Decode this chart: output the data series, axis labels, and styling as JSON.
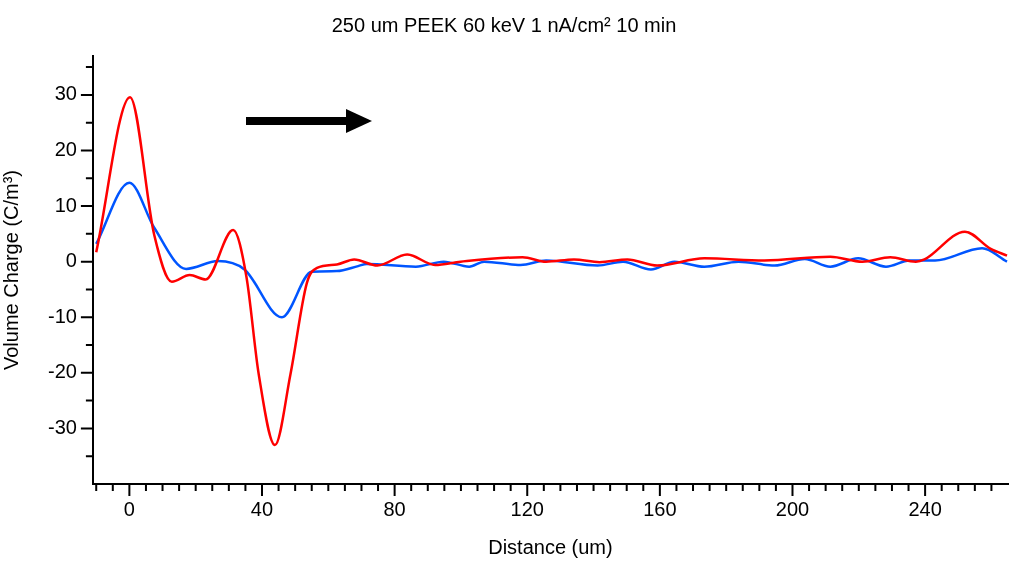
{
  "chart_data": {
    "type": "line",
    "title": "250 um PEEK 60 keV 1 nA/cm² 10 min",
    "xlabel": "Distance (um)",
    "ylabel": "Volume Charge (C/m³)",
    "xlim": [
      -11,
      265
    ],
    "ylim": [
      -40,
      37
    ],
    "xticks": [
      {
        "value": -10,
        "label": null
      },
      {
        "value": -5,
        "label": null
      },
      0,
      {
        "value": 5,
        "label": null
      },
      {
        "value": 10,
        "label": null
      },
      {
        "value": 15,
        "label": null
      },
      {
        "value": 20,
        "label": null
      },
      {
        "value": 25,
        "label": null
      },
      {
        "value": 30,
        "label": null
      },
      {
        "value": 35,
        "label": null
      },
      40,
      {
        "value": 45,
        "label": null
      },
      {
        "value": 50,
        "label": null
      },
      {
        "value": 55,
        "label": null
      },
      {
        "value": 60,
        "label": null
      },
      {
        "value": 65,
        "label": null
      },
      {
        "value": 70,
        "label": null
      },
      {
        "value": 75,
        "label": null
      },
      80,
      {
        "value": 85,
        "label": null
      },
      {
        "value": 90,
        "label": null
      },
      {
        "value": 95,
        "label": null
      },
      {
        "value": 100,
        "label": null
      },
      {
        "value": 105,
        "label": null
      },
      {
        "value": 110,
        "label": null
      },
      {
        "value": 115,
        "label": null
      },
      120,
      {
        "value": 125,
        "label": null
      },
      {
        "value": 130,
        "label": null
      },
      {
        "value": 135,
        "label": null
      },
      {
        "value": 140,
        "label": null
      },
      {
        "value": 145,
        "label": null
      },
      {
        "value": 150,
        "label": null
      },
      {
        "value": 155,
        "label": null
      },
      160,
      {
        "value": 165,
        "label": null
      },
      {
        "value": 170,
        "label": null
      },
      {
        "value": 175,
        "label": null
      },
      {
        "value": 180,
        "label": null
      },
      {
        "value": 185,
        "label": null
      },
      {
        "value": 190,
        "label": null
      },
      {
        "value": 195,
        "label": null
      },
      200,
      {
        "value": 205,
        "label": null
      },
      {
        "value": 210,
        "label": null
      },
      {
        "value": 215,
        "label": null
      },
      {
        "value": 220,
        "label": null
      },
      {
        "value": 225,
        "label": null
      },
      {
        "value": 230,
        "label": null
      },
      {
        "value": 235,
        "label": null
      },
      240,
      {
        "value": 245,
        "label": null
      },
      {
        "value": 250,
        "label": null
      },
      {
        "value": 255,
        "label": null
      },
      {
        "value": 260,
        "label": null
      }
    ],
    "yticks": [
      {
        "value": -35,
        "label": null
      },
      -30,
      {
        "value": -25,
        "label": null
      },
      -20,
      {
        "value": -15,
        "label": null
      },
      -10,
      {
        "value": -5,
        "label": null
      },
      0,
      {
        "value": 5,
        "label": null
      },
      10,
      {
        "value": 15,
        "label": null
      },
      20,
      {
        "value": 25,
        "label": null
      },
      30,
      {
        "value": 35,
        "label": null
      }
    ],
    "grid": false,
    "legend": false,
    "marker": "none",
    "line_style": "solid",
    "series": [
      {
        "color": "#ff0000",
        "x": [
          -10,
          0.2,
          7.5,
          12.8,
          18.2,
          23,
          31.3,
          35.3,
          39,
          43.9,
          48.6,
          53.5,
          56.6,
          62.6,
          67.8,
          74.8,
          83.8,
          92.2,
          99.9,
          118.6,
          125.7,
          134.1,
          141.8,
          150.2,
          159.2,
          173.4,
          191.5,
          211.4,
          221.1,
          229.5,
          237.2,
          239.8,
          252,
          259.8,
          264.7
        ],
        "values": [
          1.7,
          29.6,
          4.8,
          -3.6,
          -2.4,
          -3.2,
          5.7,
          -2.7,
          -20.2,
          -33,
          -20.2,
          -3.9,
          -1.1,
          -0.5,
          0.4,
          -0.7,
          1.3,
          -0.6,
          0,
          0.8,
          0,
          0.4,
          -0.1,
          0.4,
          -0.7,
          0.6,
          0.2,
          0.9,
          0,
          0.8,
          0,
          0.4,
          5.4,
          2.3,
          1.1
        ]
      },
      {
        "color": "#0055ff",
        "x": [
          -10,
          0,
          7.5,
          17.1,
          26.7,
          34.7,
          46,
          55,
          62.6,
          69,
          71.6,
          86.4,
          94.8,
          102.5,
          107,
          118,
          125.7,
          141.2,
          148.9,
          157.3,
          164.4,
          173.4,
          183.7,
          194.6,
          203.7,
          211.4,
          219.8,
          228.2,
          235.3,
          243,
          257.2,
          264.7
        ],
        "values": [
          3.2,
          14.2,
          6.1,
          -1.3,
          0.1,
          -1.4,
          -10,
          -1.8,
          -1.7,
          -0.8,
          -0.4,
          -0.9,
          0,
          -0.9,
          0,
          -0.6,
          0.2,
          -0.7,
          0,
          -1.4,
          0,
          -0.9,
          0,
          -0.7,
          0.5,
          -0.9,
          0.6,
          -0.9,
          0.2,
          0.2,
          2.4,
          0
        ]
      }
    ]
  }
}
